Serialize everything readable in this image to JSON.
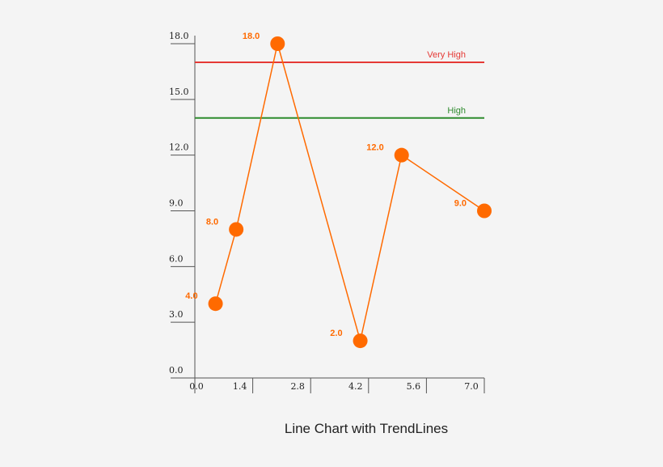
{
  "chart_data": {
    "type": "line",
    "title": "Line Chart with TrendLines",
    "xlabel": "",
    "ylabel": "",
    "xlim": [
      0.0,
      7.0
    ],
    "ylim": [
      0.0,
      18.0
    ],
    "x_ticks": [
      "0.0",
      "1.4",
      "2.8",
      "4.2",
      "5.6",
      "7.0"
    ],
    "y_ticks": [
      "0.0",
      "3.0",
      "6.0",
      "9.0",
      "12.0",
      "15.0",
      "18.0"
    ],
    "grid": false,
    "series": [
      {
        "color": "#ff6a00",
        "points": [
          {
            "x": 0.5,
            "y": 4.0,
            "label": "4.0"
          },
          {
            "x": 1.0,
            "y": 8.0,
            "label": "8.0"
          },
          {
            "x": 2.0,
            "y": 18.0,
            "label": "18.0"
          },
          {
            "x": 4.0,
            "y": 2.0,
            "label": "2.0"
          },
          {
            "x": 5.0,
            "y": 12.0,
            "label": "12.0"
          },
          {
            "x": 7.0,
            "y": 9.0,
            "label": "9.0"
          }
        ]
      }
    ],
    "trendlines": [
      {
        "label": "Very High",
        "value": 17.0,
        "color": "#e53935"
      },
      {
        "label": "High",
        "value": 14.0,
        "color": "#2e8b2e"
      }
    ]
  }
}
